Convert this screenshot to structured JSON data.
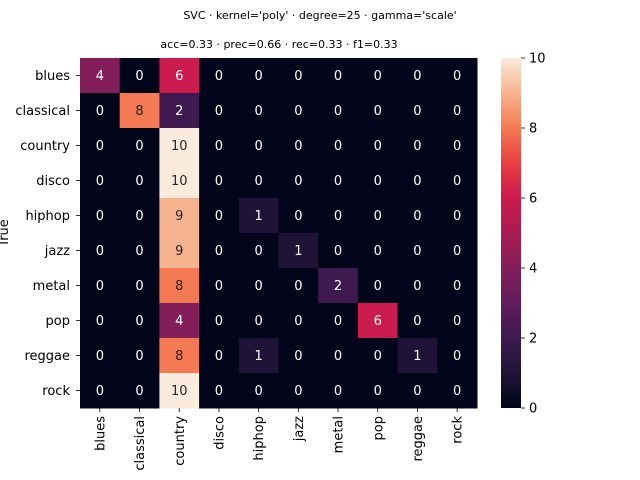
{
  "chart_data": {
    "type": "heatmap",
    "title": "SVC · kernel='poly' · degree=25 · gamma='scale'",
    "subtitle": "acc=0.33 · prec=0.66 · rec=0.33 · f1=0.33",
    "xlabel": "",
    "ylabel": "True",
    "x_categories": [
      "blues",
      "classical",
      "country",
      "disco",
      "hiphop",
      "jazz",
      "metal",
      "pop",
      "reggae",
      "rock"
    ],
    "y_categories": [
      "blues",
      "classical",
      "country",
      "disco",
      "hiphop",
      "jazz",
      "metal",
      "pop",
      "reggae",
      "rock"
    ],
    "values": [
      [
        4,
        0,
        6,
        0,
        0,
        0,
        0,
        0,
        0,
        0
      ],
      [
        0,
        8,
        2,
        0,
        0,
        0,
        0,
        0,
        0,
        0
      ],
      [
        0,
        0,
        10,
        0,
        0,
        0,
        0,
        0,
        0,
        0
      ],
      [
        0,
        0,
        10,
        0,
        0,
        0,
        0,
        0,
        0,
        0
      ],
      [
        0,
        0,
        9,
        0,
        1,
        0,
        0,
        0,
        0,
        0
      ],
      [
        0,
        0,
        9,
        0,
        0,
        1,
        0,
        0,
        0,
        0
      ],
      [
        0,
        0,
        8,
        0,
        0,
        0,
        2,
        0,
        0,
        0
      ],
      [
        0,
        0,
        4,
        0,
        0,
        0,
        0,
        6,
        0,
        0
      ],
      [
        0,
        0,
        8,
        0,
        1,
        0,
        0,
        0,
        1,
        0
      ],
      [
        0,
        0,
        10,
        0,
        0,
        0,
        0,
        0,
        0,
        0
      ]
    ],
    "colorbar": {
      "min": 0,
      "max": 10,
      "ticks": [
        0,
        2,
        4,
        6,
        8,
        10
      ],
      "colormap": "rocket"
    }
  }
}
